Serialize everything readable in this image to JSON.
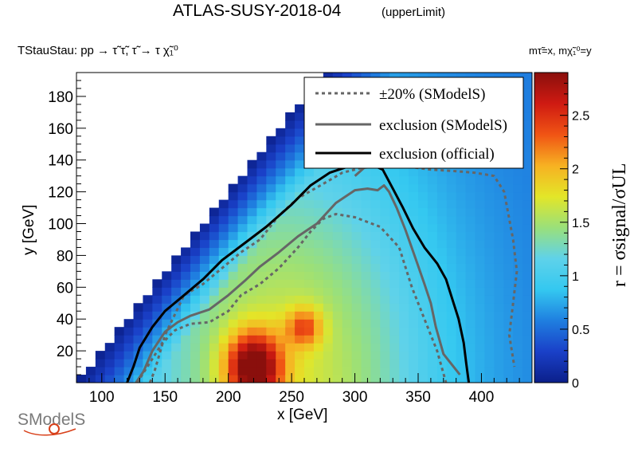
{
  "chart_data": {
    "type": "heatmap",
    "title": "ATLAS-SUSY-2018-04",
    "subtitle": "(upperLimit)",
    "process_label": "TStauStau: pp  → τ̃ τ̃, τ̃  → τ χ̃₁⁰",
    "mass_label": "mτ̃=x, mχ̃₁⁰=y",
    "xlabel": "x [GeV]",
    "ylabel": "y [GeV]",
    "zlabel": "r = σsignal/σUL",
    "xlim": [
      80,
      440
    ],
    "ylim": [
      0,
      195
    ],
    "zlim": [
      0,
      2.9
    ],
    "x_ticks": [
      100,
      150,
      200,
      250,
      300,
      350,
      400
    ],
    "y_ticks": [
      20,
      40,
      60,
      80,
      100,
      120,
      140,
      160,
      180
    ],
    "z_ticks": [
      0,
      0.5,
      1,
      1.5,
      2,
      2.5
    ],
    "colormap": [
      "#0b1f8a",
      "#1a40c8",
      "#1f7fe0",
      "#34c8f0",
      "#5fd2ea",
      "#9ae07a",
      "#e3e628",
      "#f7b122",
      "#f05414",
      "#cf1a12",
      "#8a0f0c"
    ],
    "grid_step": {
      "x": 7.5,
      "y": 5
    },
    "region": {
      "min_x": 80,
      "max_x": 440,
      "diag_offset": 78
    },
    "hotspots": [
      {
        "x": 220,
        "y": 10,
        "r_peak": 2.9,
        "sx": 22,
        "sy": 22
      },
      {
        "x": 260,
        "y": 35,
        "r_peak": 2.1,
        "sx": 14,
        "sy": 12
      }
    ],
    "series": [
      {
        "name": "±20% (SModelS)",
        "style": "dotted",
        "color": "#666666",
        "segments": [
          [
            [
              128,
              0
            ],
            [
              140,
              15
            ],
            [
              148,
              25
            ],
            [
              158,
              33
            ],
            [
              170,
              37
            ],
            [
              185,
              38
            ],
            [
              200,
              45
            ],
            [
              210,
              55
            ],
            [
              225,
              62
            ],
            [
              240,
              72
            ],
            [
              255,
              85
            ],
            [
              265,
              95
            ],
            [
              275,
              103
            ],
            [
              285,
              106
            ],
            [
              300,
              104
            ],
            [
              320,
              98
            ],
            [
              335,
              85
            ],
            [
              345,
              60
            ],
            [
              355,
              40
            ],
            [
              365,
              20
            ],
            [
              372,
              0
            ]
          ],
          [
            [
              138,
              0
            ],
            [
              142,
              8
            ],
            [
              150,
              30
            ],
            [
              165,
              55
            ],
            [
              180,
              62
            ],
            [
              195,
              72
            ],
            [
              210,
              82
            ],
            [
              225,
              90
            ],
            [
              240,
              105
            ],
            [
              255,
              116
            ],
            [
              275,
              125
            ],
            [
              290,
              132
            ],
            [
              305,
              135
            ],
            [
              320,
              136
            ],
            [
              340,
              136
            ],
            [
              360,
              134
            ],
            [
              380,
              133
            ],
            [
              395,
              132
            ],
            [
              410,
              130
            ],
            [
              418,
              120
            ],
            [
              425,
              90
            ],
            [
              428,
              70
            ],
            [
              425,
              50
            ],
            [
              422,
              30
            ],
            [
              426,
              10
            ]
          ]
        ]
      },
      {
        "name": "exclusion (SModelS)",
        "style": "solid",
        "color": "#666666",
        "segments": [
          [
            [
              127,
              0
            ],
            [
              133,
              7
            ],
            [
              140,
              20
            ],
            [
              150,
              32
            ],
            [
              160,
              38
            ],
            [
              170,
              42
            ],
            [
              185,
              46
            ],
            [
              200,
              55
            ],
            [
              213,
              64
            ],
            [
              225,
              73
            ],
            [
              240,
              82
            ],
            [
              255,
              92
            ],
            [
              270,
              100
            ],
            [
              285,
              113
            ],
            [
              300,
              121
            ],
            [
              310,
              122
            ],
            [
              318,
              121
            ],
            [
              323,
              124
            ],
            [
              327,
              120
            ],
            [
              333,
              110
            ],
            [
              340,
              96
            ],
            [
              348,
              78
            ],
            [
              355,
              62
            ],
            [
              360,
              50
            ],
            [
              364,
              35
            ],
            [
              370,
              18
            ],
            [
              378,
              10
            ],
            [
              383,
              5
            ]
          ],
          [
            [
              300,
              130
            ],
            [
              310,
              137
            ],
            [
              320,
              141
            ],
            [
              322,
              135
            ]
          ]
        ]
      },
      {
        "name": "exclusion (official)",
        "style": "solid",
        "color": "#000000",
        "segments": [
          [
            [
              120,
              0
            ],
            [
              125,
              10
            ],
            [
              130,
              22
            ],
            [
              140,
              35
            ],
            [
              150,
              45
            ],
            [
              165,
              55
            ],
            [
              180,
              65
            ],
            [
              195,
              77
            ],
            [
              215,
              89
            ],
            [
              230,
              98
            ],
            [
              250,
              112
            ],
            [
              265,
              124
            ],
            [
              280,
              132
            ],
            [
              295,
              136
            ],
            [
              308,
              139
            ],
            [
              322,
              134
            ],
            [
              330,
              122
            ],
            [
              338,
              110
            ],
            [
              346,
              97
            ],
            [
              355,
              85
            ],
            [
              365,
              75
            ],
            [
              372,
              65
            ],
            [
              378,
              50
            ],
            [
              382,
              40
            ],
            [
              386,
              25
            ],
            [
              388,
              12
            ],
            [
              390,
              0
            ]
          ]
        ]
      }
    ],
    "legend_position": "top-right"
  },
  "logo_text": "SModelS",
  "colors": {
    "axis": "#000000",
    "frame": "#000000",
    "legend_bg": "#ffffff"
  }
}
